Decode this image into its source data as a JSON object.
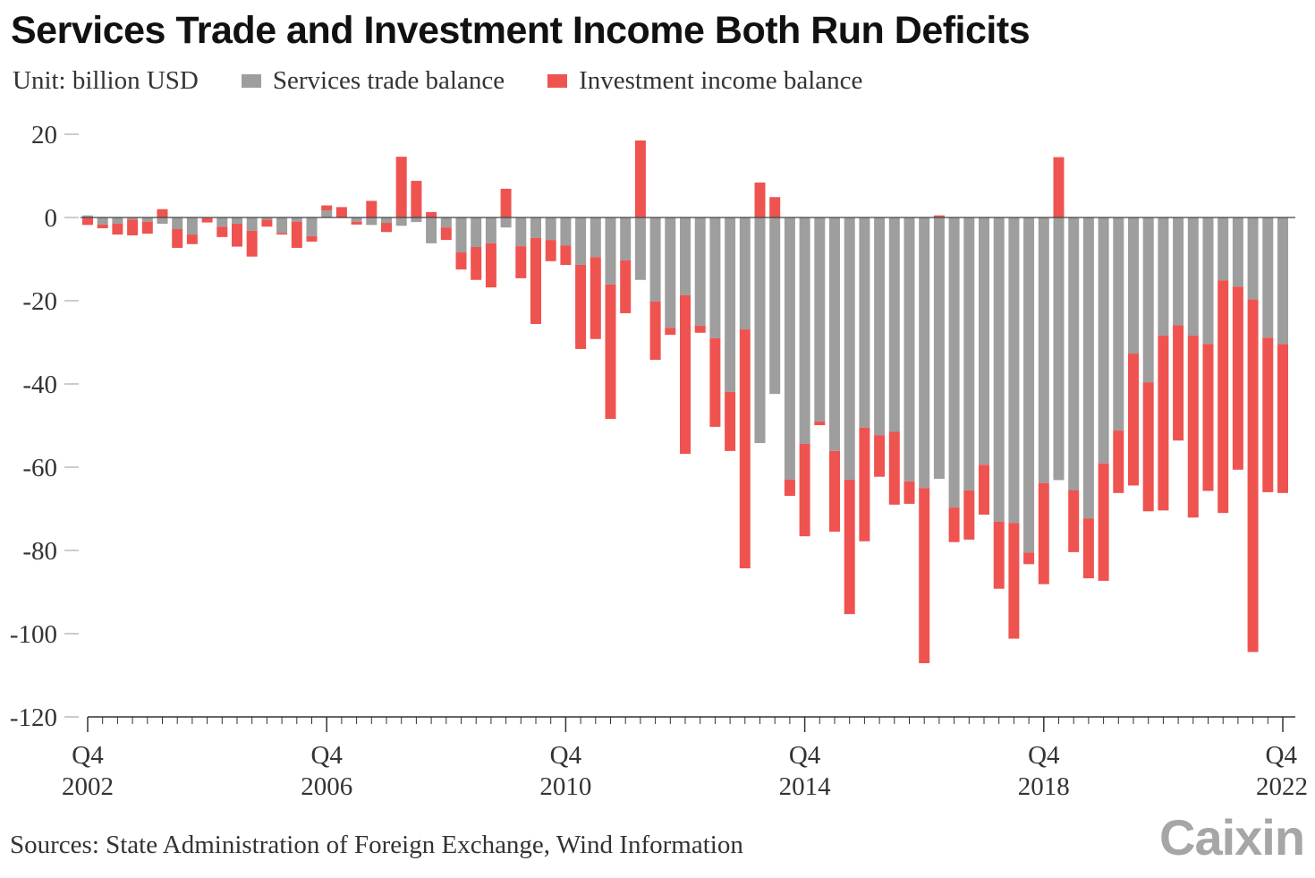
{
  "title": "Services Trade and Investment Income Both Run Deficits",
  "unit": "Unit: billion USD",
  "source": "Sources: State Administration of Foreign Exchange, Wind Information",
  "logo": "Caixin",
  "colors": {
    "services": "#9e9e9e",
    "investment": "#ef5350",
    "axis": "#333333"
  },
  "chart_data": {
    "type": "bar",
    "stacked": true,
    "title": "Services Trade and Investment Income Both Run Deficits",
    "ylabel": "Unit: billion USD",
    "ylim": [
      -120,
      20
    ],
    "y_ticks": [
      "20",
      "0",
      "-20",
      "-40",
      "-60",
      "-80",
      "-100",
      "-120"
    ],
    "y_tick_values": [
      20,
      0,
      -20,
      -40,
      -60,
      -80,
      -100,
      -120
    ],
    "x_ticks": [
      {
        "q": "Q4",
        "year": "2002",
        "index": 0
      },
      {
        "q": "Q4",
        "year": "2006",
        "index": 16
      },
      {
        "q": "Q4",
        "year": "2010",
        "index": 32
      },
      {
        "q": "Q4",
        "year": "2014",
        "index": 48
      },
      {
        "q": "Q4",
        "year": "2018",
        "index": 64
      },
      {
        "q": "Q4",
        "year": "2022",
        "index": 80
      }
    ],
    "legend_position": "top-left",
    "grid": false,
    "categories": [
      "2002Q4",
      "2003Q1",
      "2003Q2",
      "2003Q3",
      "2003Q4",
      "2004Q1",
      "2004Q2",
      "2004Q3",
      "2004Q4",
      "2005Q1",
      "2005Q2",
      "2005Q3",
      "2005Q4",
      "2006Q1",
      "2006Q2",
      "2006Q3",
      "2006Q4",
      "2007Q1",
      "2007Q2",
      "2007Q3",
      "2007Q4",
      "2008Q1",
      "2008Q2",
      "2008Q3",
      "2008Q4",
      "2009Q1",
      "2009Q2",
      "2009Q3",
      "2009Q4",
      "2010Q1",
      "2010Q2",
      "2010Q3",
      "2010Q4",
      "2011Q1",
      "2011Q2",
      "2011Q3",
      "2011Q4",
      "2012Q1",
      "2012Q2",
      "2012Q3",
      "2012Q4",
      "2013Q1",
      "2013Q2",
      "2013Q3",
      "2013Q4",
      "2014Q1",
      "2014Q2",
      "2014Q3",
      "2014Q4",
      "2015Q1",
      "2015Q2",
      "2015Q3",
      "2015Q4",
      "2016Q1",
      "2016Q2",
      "2016Q3",
      "2016Q4",
      "2017Q1",
      "2017Q2",
      "2017Q3",
      "2017Q4",
      "2018Q1",
      "2018Q2",
      "2018Q3",
      "2018Q4",
      "2019Q1",
      "2019Q2",
      "2019Q3",
      "2019Q4",
      "2020Q1",
      "2020Q2",
      "2020Q3",
      "2020Q4",
      "2021Q1",
      "2021Q2",
      "2021Q3",
      "2021Q4",
      "2022Q1",
      "2022Q2",
      "2022Q3",
      "2022Q4"
    ],
    "series": [
      {
        "name": "Services trade balance",
        "color": "#9e9e9e",
        "values": [
          0.5,
          -1.7,
          -1.5,
          -0.5,
          -1,
          -1.5,
          -2.8,
          -4.1,
          -0.2,
          -2.2,
          -1.5,
          -3.2,
          -0.5,
          -3.7,
          -1,
          -4.5,
          1.7,
          0,
          -1,
          -1.8,
          -1.3,
          -2,
          -1.1,
          -6.2,
          -2.4,
          -8.4,
          -7.1,
          -6.2,
          -2.4,
          -6.9,
          -4.9,
          -5.4,
          -6.7,
          -11.4,
          -9.5,
          -16.1,
          -10.3,
          -15,
          -20.2,
          -26.5,
          -18.7,
          -26,
          -29,
          -41.9,
          -26.9,
          -54.2,
          -42.4,
          -63,
          -54.4,
          -49,
          -56.1,
          -63,
          -50.5,
          -52.3,
          -51.5,
          -63.4,
          -65,
          -62.8,
          -69.7,
          -65.6,
          -59.4,
          -73.1,
          -73.4,
          -80.5,
          -63.8,
          -63.1,
          -65.5,
          -72.3,
          -59.1,
          -51.2,
          -32.7,
          -39.6,
          -28.4,
          -25.9,
          -28.4,
          -30.4,
          -15.1,
          -16.6,
          -19.7,
          -28.9,
          -30.4
        ]
      },
      {
        "name": "Investment income balance",
        "color": "#ef5350",
        "values": [
          -1.8,
          -0.9,
          -2.6,
          -3.8,
          -2.9,
          2,
          -4.5,
          -2.3,
          -1,
          -2.5,
          -5.5,
          -6.2,
          -1.7,
          -0.4,
          -6.3,
          -1.3,
          1.2,
          2.5,
          -0.7,
          4,
          -2.2,
          14.6,
          8.8,
          1.3,
          -3,
          -4.1,
          -7.9,
          -10.6,
          6.9,
          -7.7,
          -20.7,
          -5.1,
          -4.7,
          -20.2,
          -19.7,
          -32.3,
          -12.7,
          18.5,
          -14,
          -1.7,
          -38.1,
          -1.7,
          -21.3,
          -14.2,
          -57.4,
          8.4,
          4.9,
          -3.9,
          -22.2,
          -0.9,
          -19.4,
          -32.3,
          -27.3,
          -10,
          -17.5,
          -5.4,
          -42.1,
          0.5,
          -8.3,
          -11.8,
          -12,
          -16.1,
          -27.8,
          -2.8,
          -24.3,
          14.5,
          -14.9,
          -14.4,
          -28.2,
          -15,
          -31.7,
          -31,
          -42,
          -27.7,
          -43.7,
          -35.3,
          -55.9,
          -44,
          -84.7,
          -37.1,
          -35.8
        ]
      }
    ]
  }
}
